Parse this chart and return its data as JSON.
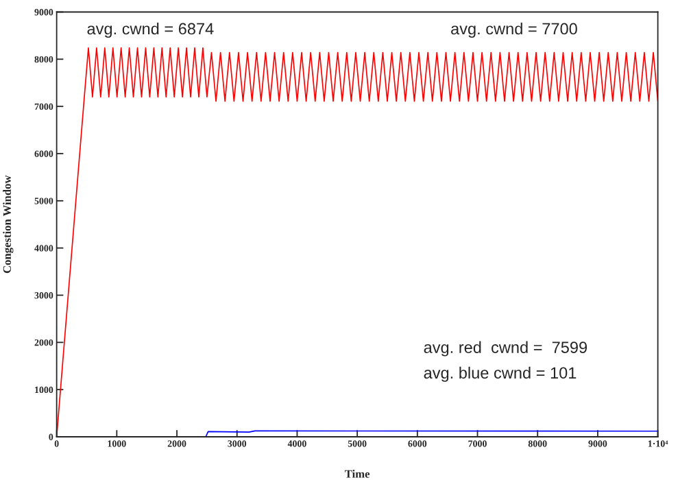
{
  "chart_data": {
    "type": "line",
    "xlabel": "Time",
    "ylabel": "Congestion Window",
    "xlim": [
      0,
      10000
    ],
    "ylim": [
      0,
      9000
    ],
    "xticks": [
      0,
      1000,
      2000,
      3000,
      4000,
      5000,
      6000,
      7000,
      8000,
      9000,
      {
        "value": 10000,
        "label": "1·10⁴"
      }
    ],
    "yticks": [
      0,
      1000,
      2000,
      3000,
      4000,
      5000,
      6000,
      7000,
      8000,
      9000
    ],
    "grid": false,
    "legend": false,
    "marker": "none",
    "line_style": "solid",
    "annotations": [
      "avg. cwnd = 6874",
      "avg. cwnd = 7700",
      "avg. red  cwnd =  7599",
      "avg. blue cwnd = 101"
    ],
    "series": [
      {
        "color": "#ff0000",
        "x": [
          0,
          460,
          528,
          596,
          664,
          732,
          800,
          868,
          936,
          1004,
          1072,
          1140,
          1208,
          1276,
          1344,
          1412,
          1480,
          1548,
          1616,
          1684,
          1752,
          1820,
          1888,
          1956,
          2024,
          2092,
          2160,
          2228,
          2296,
          2364,
          2432,
          2500,
          2575,
          2650,
          2725,
          2800,
          2875,
          2950,
          3025,
          3100,
          3175,
          3250,
          3325,
          3400,
          3475,
          3550,
          3625,
          3700,
          3775,
          3850,
          3925,
          4000,
          4075,
          4150,
          4225,
          4300,
          4375,
          4450,
          4525,
          4600,
          4675,
          4750,
          4825,
          4900,
          4975,
          5050,
          5125,
          5200,
          5275,
          5350,
          5425,
          5500,
          5575,
          5650,
          5725,
          5800,
          5875,
          5950,
          6025,
          6100,
          6175,
          6250,
          6325,
          6400,
          6475,
          6550,
          6625,
          6700,
          6775,
          6850,
          6925,
          7000,
          7075,
          7150,
          7225,
          7300,
          7375,
          7450,
          7525,
          7600,
          7675,
          7750,
          7825,
          7900,
          7975,
          8050,
          8125,
          8200,
          8275,
          8350,
          8425,
          8500,
          8575,
          8650,
          8725,
          8800,
          8875,
          8950,
          9025,
          9100,
          9175,
          9250,
          9325,
          9400,
          9475,
          9550,
          9625,
          9700,
          9775,
          9850,
          9925,
          10000
        ],
        "values": [
          0,
          7200,
          8240,
          7200,
          8240,
          7200,
          8240,
          7200,
          8240,
          7200,
          8240,
          7200,
          8240,
          7200,
          8240,
          7200,
          8240,
          7200,
          8240,
          7200,
          8240,
          7200,
          8240,
          7200,
          8240,
          7200,
          8240,
          7200,
          8240,
          7200,
          8240,
          7200,
          8140,
          7110,
          8140,
          7110,
          8140,
          7110,
          8140,
          7110,
          8140,
          7110,
          8140,
          7110,
          8140,
          7110,
          8140,
          7110,
          8140,
          7110,
          8140,
          7110,
          8140,
          7110,
          8140,
          7110,
          8140,
          7110,
          8140,
          7110,
          8140,
          7110,
          8140,
          7110,
          8140,
          7110,
          8140,
          7110,
          8140,
          7110,
          8140,
          7110,
          8140,
          7110,
          8140,
          7110,
          8140,
          7110,
          8140,
          7110,
          8140,
          7110,
          8140,
          7110,
          8140,
          7110,
          8140,
          7110,
          8140,
          7110,
          8140,
          7110,
          8140,
          7110,
          8140,
          7110,
          8140,
          7110,
          8140,
          7110,
          8140,
          7110,
          8140,
          7110,
          8140,
          7110,
          8140,
          7110,
          8140,
          7110,
          8140,
          7110,
          8140,
          7110,
          8140,
          7110,
          8140,
          7110,
          8140,
          7110,
          8140,
          7110,
          8140,
          7110,
          8140,
          7110,
          8140,
          7110,
          8140,
          7110,
          8140,
          7110
        ]
      },
      {
        "color": "#0000ff",
        "x": [
          0,
          2480,
          2520,
          3200,
          3300,
          10000
        ],
        "values": [
          0,
          0,
          110,
          100,
          125,
          120
        ]
      }
    ]
  }
}
